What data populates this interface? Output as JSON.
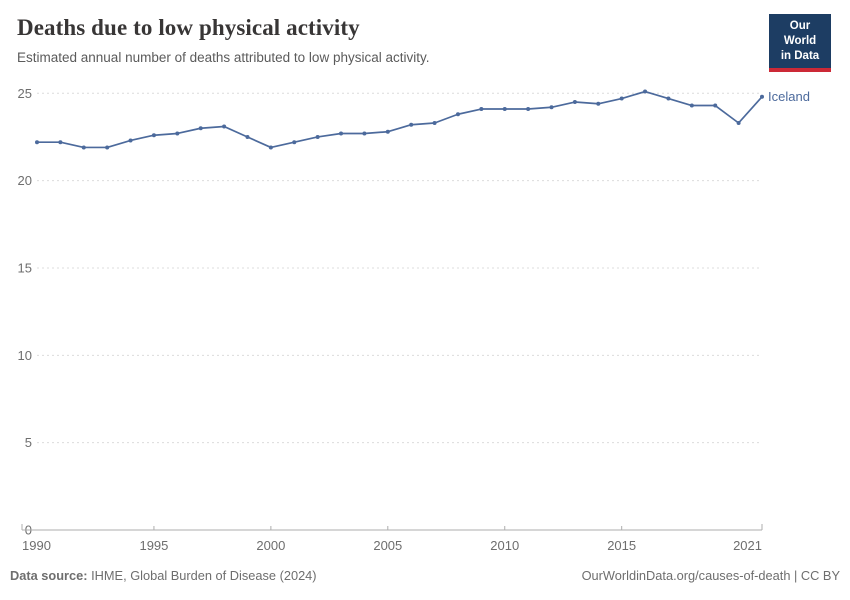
{
  "header": {
    "title": "Deaths due to low physical activity",
    "subtitle": "Estimated annual number of deaths attributed to low physical activity.",
    "logo": {
      "line1": "Our World",
      "line2": "in Data",
      "bg_color": "#1d3d63",
      "accent_color": "#cc2936"
    }
  },
  "chart_data": {
    "type": "line",
    "title": "Deaths due to low physical activity",
    "subtitle": "Estimated annual number of deaths attributed to low physical activity.",
    "xlabel": "",
    "ylabel": "",
    "xlim": [
      1990,
      2021
    ],
    "ylim": [
      0,
      25
    ],
    "x_ticks": [
      1990,
      1995,
      2000,
      2005,
      2010,
      2015,
      2021
    ],
    "y_ticks": [
      0,
      5,
      10,
      15,
      20,
      25
    ],
    "grid": "horizontal-dashed",
    "legend_position": "end-of-line-label",
    "series": [
      {
        "name": "Iceland",
        "color": "#4c6a9c",
        "x": [
          1990,
          1991,
          1992,
          1993,
          1994,
          1995,
          1996,
          1997,
          1998,
          1999,
          2000,
          2001,
          2002,
          2003,
          2004,
          2005,
          2006,
          2007,
          2008,
          2009,
          2010,
          2011,
          2012,
          2013,
          2014,
          2015,
          2016,
          2017,
          2018,
          2019,
          2020,
          2021
        ],
        "values": [
          22.2,
          22.2,
          21.9,
          21.9,
          22.3,
          22.6,
          22.7,
          23.0,
          23.1,
          22.5,
          21.9,
          22.2,
          22.5,
          22.7,
          22.7,
          22.8,
          23.2,
          23.3,
          23.8,
          24.1,
          24.1,
          24.1,
          24.2,
          24.5,
          24.4,
          24.7,
          25.1,
          24.7,
          24.3,
          24.3,
          23.3,
          24.8
        ]
      }
    ],
    "axis_colors": {
      "grid": "#dcdcdc",
      "axis_line": "#adadad",
      "tick_label": "#6e6e6e"
    }
  },
  "footer": {
    "source_label": "Data source:",
    "source_text": " IHME, Global Burden of Disease (2024)",
    "credit": "OurWorldinData.org/causes-of-death | CC BY"
  }
}
